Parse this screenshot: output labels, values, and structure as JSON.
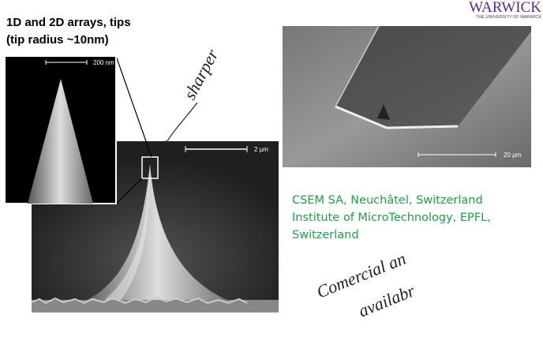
{
  "header": {
    "logo": "WARWICK",
    "logo_subtitle": "THE UNIVERSITY OF WARWICK"
  },
  "left": {
    "title_lines": [
      "1D and 2D arrays, tips",
      "(tip radius ~10nm)"
    ],
    "images": [
      {
        "scale": "200 nm"
      },
      {
        "scale": "2 µm"
      }
    ],
    "annotation": "sharper"
  },
  "right": {
    "image": {
      "scale": "20 µm"
    },
    "source_lines": [
      "CSEM SA, Neuchâtel, Switzerland",
      "Institute of MicroTechnology, EPFL,",
      "Switzerland"
    ],
    "annotation_lines": [
      "Comercial an",
      "availabr"
    ]
  }
}
